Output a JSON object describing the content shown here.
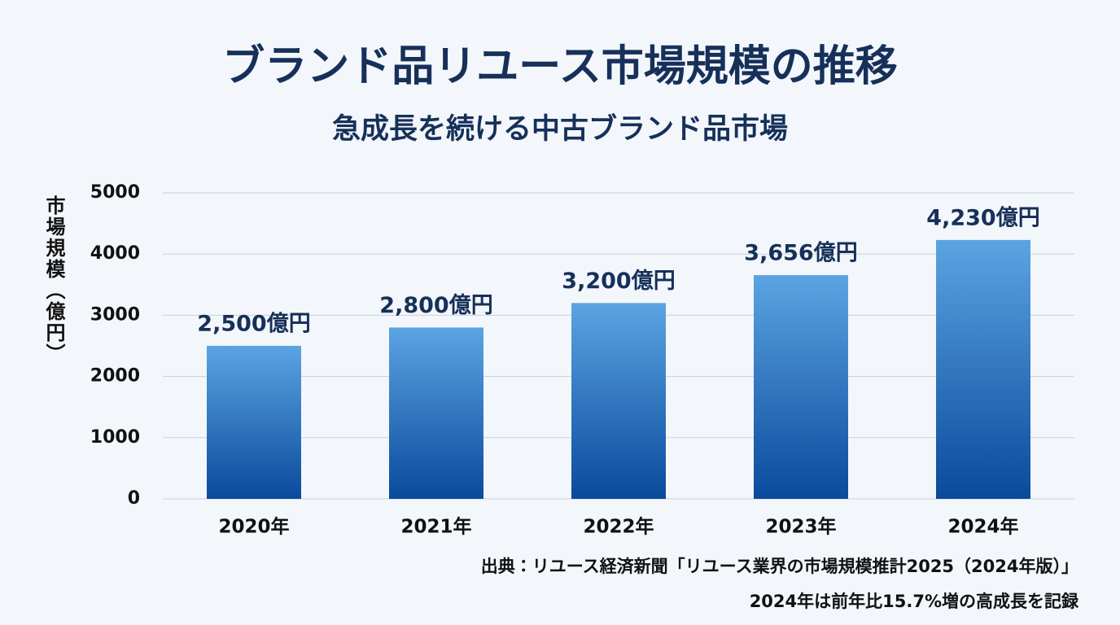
{
  "chart_data": {
    "type": "bar",
    "title": "ブランド品リユース市場規模の推移",
    "subtitle": "急成長を続ける中古ブランド品市場",
    "y_label": "市場規模（億円）",
    "categories": [
      "2020年",
      "2021年",
      "2022年",
      "2023年",
      "2024年"
    ],
    "values": [
      2500,
      2800,
      3200,
      3656,
      4230
    ],
    "value_labels": [
      "2,500億円",
      "2,800億円",
      "3,200億円",
      "3,656億円",
      "4,230億円"
    ],
    "color": [
      "#5ba4e2",
      "#0a4a9c"
    ],
    "ylim": [
      0,
      5000
    ],
    "yticks": [
      0,
      1000,
      2000,
      3000,
      4000,
      5000
    ],
    "grid": true,
    "notes": [
      "出典：リユース経済新聞「リユース業界の市場規模推計2025（2024年版）」",
      "2024年は前年比15.7%増の高成長を記録"
    ]
  }
}
